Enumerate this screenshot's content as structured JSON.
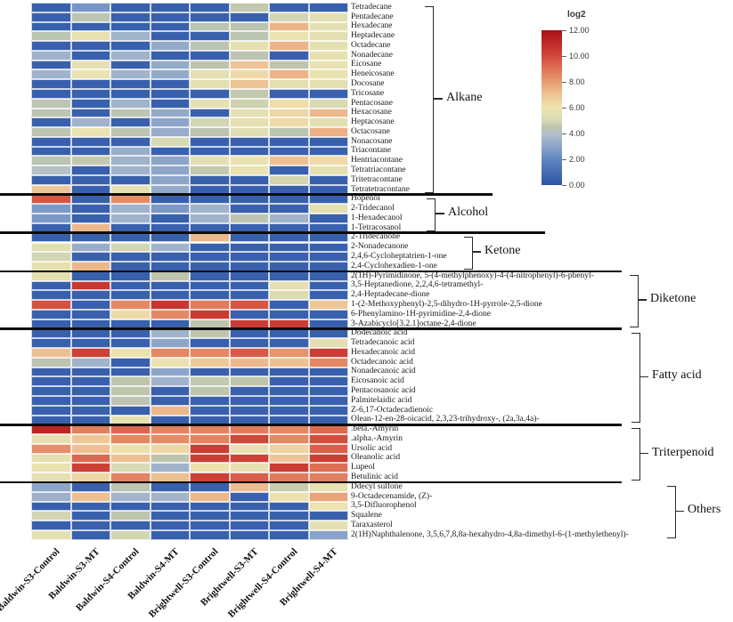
{
  "chart_data": {
    "type": "heatmap",
    "title": "",
    "legend": {
      "title": "log2",
      "min": 0,
      "max": 12,
      "tick_labels": [
        "12.00",
        "10.00",
        "8.00",
        "6.00",
        "4.00",
        "2.00",
        "0.00"
      ],
      "position": "top-right"
    },
    "colormap_stops": [
      {
        "v": 0,
        "color": "#2c53a6"
      },
      {
        "v": 2,
        "color": "#6186c2"
      },
      {
        "v": 3,
        "color": "#8da5c9"
      },
      {
        "v": 4,
        "color": "#b2c0cb"
      },
      {
        "v": 4.5,
        "color": "#bec5ac"
      },
      {
        "v": 5,
        "color": "#d8dab4"
      },
      {
        "v": 6,
        "color": "#eee4af"
      },
      {
        "v": 7,
        "color": "#eec496"
      },
      {
        "v": 8,
        "color": "#e89c71"
      },
      {
        "v": 9,
        "color": "#e07357"
      },
      {
        "v": 10,
        "color": "#d14a3c"
      },
      {
        "v": 11,
        "color": "#c02a28"
      },
      {
        "v": 12,
        "color": "#a90f15"
      }
    ],
    "columns": [
      "Baldwin-S3-Control",
      "Baldwin-S3-MT",
      "Baldwin-S4-Control",
      "Baldwin-S4-MT",
      "Brightwell-S3-Control",
      "Brightwell-S3-MT",
      "Brightwell-S4-Control",
      "Brightwell-S4-MT"
    ],
    "groups": [
      {
        "label": "Alkane",
        "rows": [
          {
            "label": "Tetradecane",
            "values": [
              0.5,
              2.5,
              0.5,
              0.5,
              0.5,
              4.6,
              0.5,
              0.5
            ]
          },
          {
            "label": "Pentadecane",
            "values": [
              0.5,
              4.4,
              0.5,
              0.5,
              0.5,
              0.5,
              4.9,
              5.5
            ]
          },
          {
            "label": "Hexadecane",
            "values": [
              0.5,
              0.5,
              0.5,
              0.5,
              4.4,
              4.4,
              7.4,
              5.5
            ]
          },
          {
            "label": "Heptadecane",
            "values": [
              4.4,
              5.7,
              3.5,
              0.5,
              0.5,
              4.4,
              5.8,
              5.5
            ]
          },
          {
            "label": "Octadecane",
            "values": [
              0.5,
              0.5,
              0.5,
              3.2,
              4.4,
              5.6,
              7.4,
              5.6
            ]
          },
          {
            "label": "Nonadecane",
            "values": [
              3.5,
              0.5,
              3.5,
              0.5,
              0.5,
              4.4,
              0.5,
              5.7
            ]
          },
          {
            "label": "Eicosane",
            "values": [
              0.5,
              5.6,
              0.5,
              3.2,
              4.5,
              7.0,
              4.5,
              5.8
            ]
          },
          {
            "label": "Heneicosane",
            "values": [
              3.5,
              5.8,
              3.5,
              3.2,
              5.5,
              6.3,
              7.4,
              5.8
            ]
          },
          {
            "label": "Docosane",
            "values": [
              0.5,
              0.5,
              0.5,
              0.5,
              5.5,
              7.0,
              5.5,
              5.5
            ]
          },
          {
            "label": "Tricosane",
            "values": [
              0.5,
              0.5,
              0.5,
              0.5,
              0.5,
              4.6,
              0.5,
              0.5
            ]
          },
          {
            "label": "Pentacosane",
            "values": [
              4.4,
              0.5,
              3.5,
              0.5,
              5.6,
              4.8,
              6.2,
              5.0
            ]
          },
          {
            "label": "Hexacosane",
            "values": [
              4.4,
              0.5,
              4.4,
              3.2,
              0.5,
              5.6,
              6.4,
              7.3
            ]
          },
          {
            "label": "Heptacosane",
            "values": [
              0.5,
              3.5,
              0.5,
              3.0,
              4.9,
              5.6,
              6.3,
              5.5
            ]
          },
          {
            "label": "Octacosane",
            "values": [
              4.4,
              5.8,
              4.4,
              3.3,
              4.4,
              5.3,
              4.4,
              7.5
            ]
          },
          {
            "label": "Nonacosane",
            "values": [
              0.5,
              0.5,
              0.5,
              5.0,
              0.5,
              0.5,
              0.5,
              0.5
            ]
          },
          {
            "label": "Triacontane",
            "values": [
              0.5,
              0.5,
              3.3,
              0.5,
              0.5,
              0.5,
              0.5,
              0.5
            ]
          },
          {
            "label": "Hentriacontane",
            "values": [
              4.4,
              4.6,
              3.5,
              3.0,
              5.5,
              5.8,
              7.1,
              6.3
            ]
          },
          {
            "label": "Tetratriacontane",
            "values": [
              4.1,
              0.5,
              3.5,
              3.0,
              4.6,
              5.8,
              0.5,
              5.6
            ]
          },
          {
            "label": "Tritetracontane",
            "values": [
              0.5,
              0.5,
              0.5,
              3.0,
              0.5,
              0.5,
              4.9,
              0.5
            ]
          },
          {
            "label": "Tetratetracontane",
            "values": [
              6.9,
              0.5,
              5.6,
              3.2,
              0.5,
              0.5,
              0.5,
              0.5
            ]
          }
        ]
      },
      {
        "label": "Alcohol",
        "rows": [
          {
            "label": "Hopenol",
            "values": [
              9.7,
              0.5,
              8.4,
              0.5,
              0.5,
              0.5,
              0.5,
              0.5
            ]
          },
          {
            "label": "2-Tridecanol",
            "values": [
              2.6,
              0.5,
              3.5,
              2.6,
              3.5,
              0.5,
              0.5,
              5.5
            ]
          },
          {
            "label": "1-Hexadecanol",
            "values": [
              2.6,
              0.5,
              3.5,
              0.5,
              3.5,
              4.4,
              3.5,
              0.5
            ]
          },
          {
            "label": "1-Tetracosanol",
            "values": [
              0.5,
              7.3,
              0.5,
              0.5,
              0.5,
              0.5,
              0.5,
              0.5
            ]
          }
        ]
      },
      {
        "label": "Ketone",
        "rows": [
          {
            "label": "2-Tridecanone",
            "values": [
              0.5,
              0.5,
              0.5,
              0.5,
              7.3,
              0.5,
              0.5,
              0.5
            ]
          },
          {
            "label": "2-Nonadecanone",
            "values": [
              5.5,
              3.3,
              4.9,
              3.5,
              0.5,
              0.5,
              0.5,
              0.5
            ]
          },
          {
            "label": "2,4,6-Cycloheptatrien-1-one",
            "values": [
              4.9,
              0.5,
              0.5,
              0.5,
              0.5,
              0.5,
              0.5,
              0.5
            ]
          },
          {
            "label": "2,4-Cyclohexadien-1-one",
            "values": [
              5.6,
              7.3,
              0.5,
              0.5,
              0.5,
              0.5,
              0.5,
              0.5
            ]
          }
        ]
      },
      {
        "label": "Diketone",
        "rows": [
          {
            "label": "2(1H)-Pyrimidinone, 5-(4-methylphenoxy)-4-(4-nitrophenyl)-6-phenyl-",
            "values": [
              5.6,
              0.5,
              0.5,
              4.5,
              0.5,
              0.5,
              0.5,
              0.5
            ]
          },
          {
            "label": "3,5-Heptanedione, 2,2,4,6-tetramethyl-",
            "values": [
              0.5,
              10.6,
              0.5,
              0.5,
              0.5,
              0.5,
              5.5,
              0.5
            ]
          },
          {
            "label": "2,4-Heptadecane-dione",
            "values": [
              0.5,
              0.5,
              0.5,
              0.5,
              0.5,
              0.5,
              5.2,
              0.5
            ]
          },
          {
            "label": "1-(2-Methoxyphenyl)-2,5-dihydro-1H-pyrrole-2,5-dione",
            "values": [
              9.8,
              0.5,
              8.5,
              10.6,
              8.8,
              9.7,
              0.5,
              6.9
            ]
          },
          {
            "label": "6-Phenylamino-1H-pyrimidine-2,4-dione",
            "values": [
              0.5,
              0.5,
              6.3,
              8.5,
              10.5,
              0.5,
              0.5,
              0.5
            ]
          },
          {
            "label": "3-Azabicyclo[3.2.1]octane-2,4-dione",
            "values": [
              0.5,
              0.5,
              0.5,
              0.5,
              4.5,
              10.4,
              10.4,
              0.5
            ]
          }
        ]
      },
      {
        "label": "Fatty acid",
        "rows": [
          {
            "label": "Dodecanoic acid",
            "values": [
              0.5,
              0.5,
              0.5,
              3.5,
              4.5,
              0.5,
              0.5,
              0.5
            ]
          },
          {
            "label": "Tetradecanoic acid",
            "values": [
              0.5,
              0.5,
              0.5,
              3.0,
              0.5,
              0.5,
              0.5,
              5.5
            ]
          },
          {
            "label": "Hexadecanoic acid",
            "values": [
              7.1,
              10.3,
              5.8,
              8.5,
              8.5,
              9.6,
              8.2,
              10.4
            ]
          },
          {
            "label": "Octadecanoic acid",
            "values": [
              4.4,
              3.5,
              0.5,
              5.8,
              6.8,
              7.3,
              7.1,
              8.5
            ]
          },
          {
            "label": "Nonadecanoic acid",
            "values": [
              0.5,
              0.5,
              0.5,
              3.0,
              0.5,
              0.5,
              0.5,
              0.5
            ]
          },
          {
            "label": "Eicosanoic acid",
            "values": [
              0.5,
              0.5,
              4.5,
              3.5,
              4.6,
              4.5,
              0.5,
              0.5
            ]
          },
          {
            "label": "Pentacosanoic acid",
            "values": [
              0.5,
              0.5,
              4.5,
              0.5,
              4.5,
              0.5,
              0.5,
              0.5
            ]
          },
          {
            "label": "Palmitelaidic acid",
            "values": [
              0.5,
              0.5,
              4.4,
              0.5,
              0.5,
              0.5,
              0.5,
              0.5
            ]
          },
          {
            "label": "Z-6,17-Octadecadienoic",
            "values": [
              0.5,
              0.5,
              0.5,
              7.3,
              0.5,
              0.5,
              0.5,
              0.5
            ]
          },
          {
            "label": "Olean-12-en-28-oicacid, 2,3,23-trihydroxy-, (2a,3a,4a)-",
            "values": [
              0.5,
              0.5,
              5.7,
              0.5,
              0.5,
              0.5,
              0.5,
              0.5
            ]
          }
        ]
      },
      {
        "label": "Triterpenoid",
        "rows": [
          {
            "label": ".beta.-Amyrin",
            "values": [
              11.2,
              8.7,
              9.3,
              8.6,
              8.6,
              8.8,
              8.5,
              9.2
            ]
          },
          {
            "label": ".alpha.-Amyrin",
            "values": [
              5.6,
              6.9,
              8.5,
              8.4,
              8.6,
              10.1,
              8.5,
              9.9
            ]
          },
          {
            "label": "Ursolic acid",
            "values": [
              8.3,
              7.1,
              6.2,
              6.4,
              10.4,
              5.7,
              6.5,
              9.5
            ]
          },
          {
            "label": "Oleanolic acid",
            "values": [
              5.6,
              9.3,
              7.1,
              4.5,
              10.4,
              10.3,
              7.0,
              10.4
            ]
          },
          {
            "label": "Lupeol",
            "values": [
              5.8,
              10.3,
              5.1,
              3.5,
              6.1,
              5.7,
              10.4,
              9.1
            ]
          },
          {
            "label": "Betulinic acid",
            "values": [
              5.6,
              6.4,
              8.6,
              7.1,
              10.3,
              9.5,
              8.8,
              8.7
            ]
          }
        ]
      },
      {
        "label": "Others",
        "rows": [
          {
            "label": "Ddecyl sulfone",
            "values": [
              3.0,
              0.5,
              4.4,
              0.5,
              0.5,
              7.2,
              4.7,
              5.7
            ]
          },
          {
            "label": "9-Octadecenamide, (Z)-",
            "values": [
              3.4,
              7.1,
              3.6,
              3.6,
              7.3,
              0.5,
              6.1,
              7.8
            ]
          },
          {
            "label": "3,5-Difluorophenol",
            "values": [
              0.5,
              0.5,
              0.5,
              0.5,
              0.5,
              0.5,
              0.5,
              5.9
            ]
          },
          {
            "label": "Squalene",
            "values": [
              4.9,
              0.5,
              4.5,
              0.5,
              0.5,
              0.5,
              0.5,
              0.5
            ]
          },
          {
            "label": "Taraxasterol",
            "values": [
              0.5,
              0.5,
              0.5,
              0.5,
              0.5,
              0.5,
              0.5,
              5.6
            ]
          },
          {
            "label": "2(1H)Naphthalenone, 3,5,6,7,8,8a-hexahydro-4,8a-dimethyl-6-(1-methylethenyl)-",
            "values": [
              5.6,
              0.5,
              4.9,
              0.5,
              0.5,
              0.5,
              0.5,
              2.9
            ]
          }
        ]
      }
    ]
  }
}
